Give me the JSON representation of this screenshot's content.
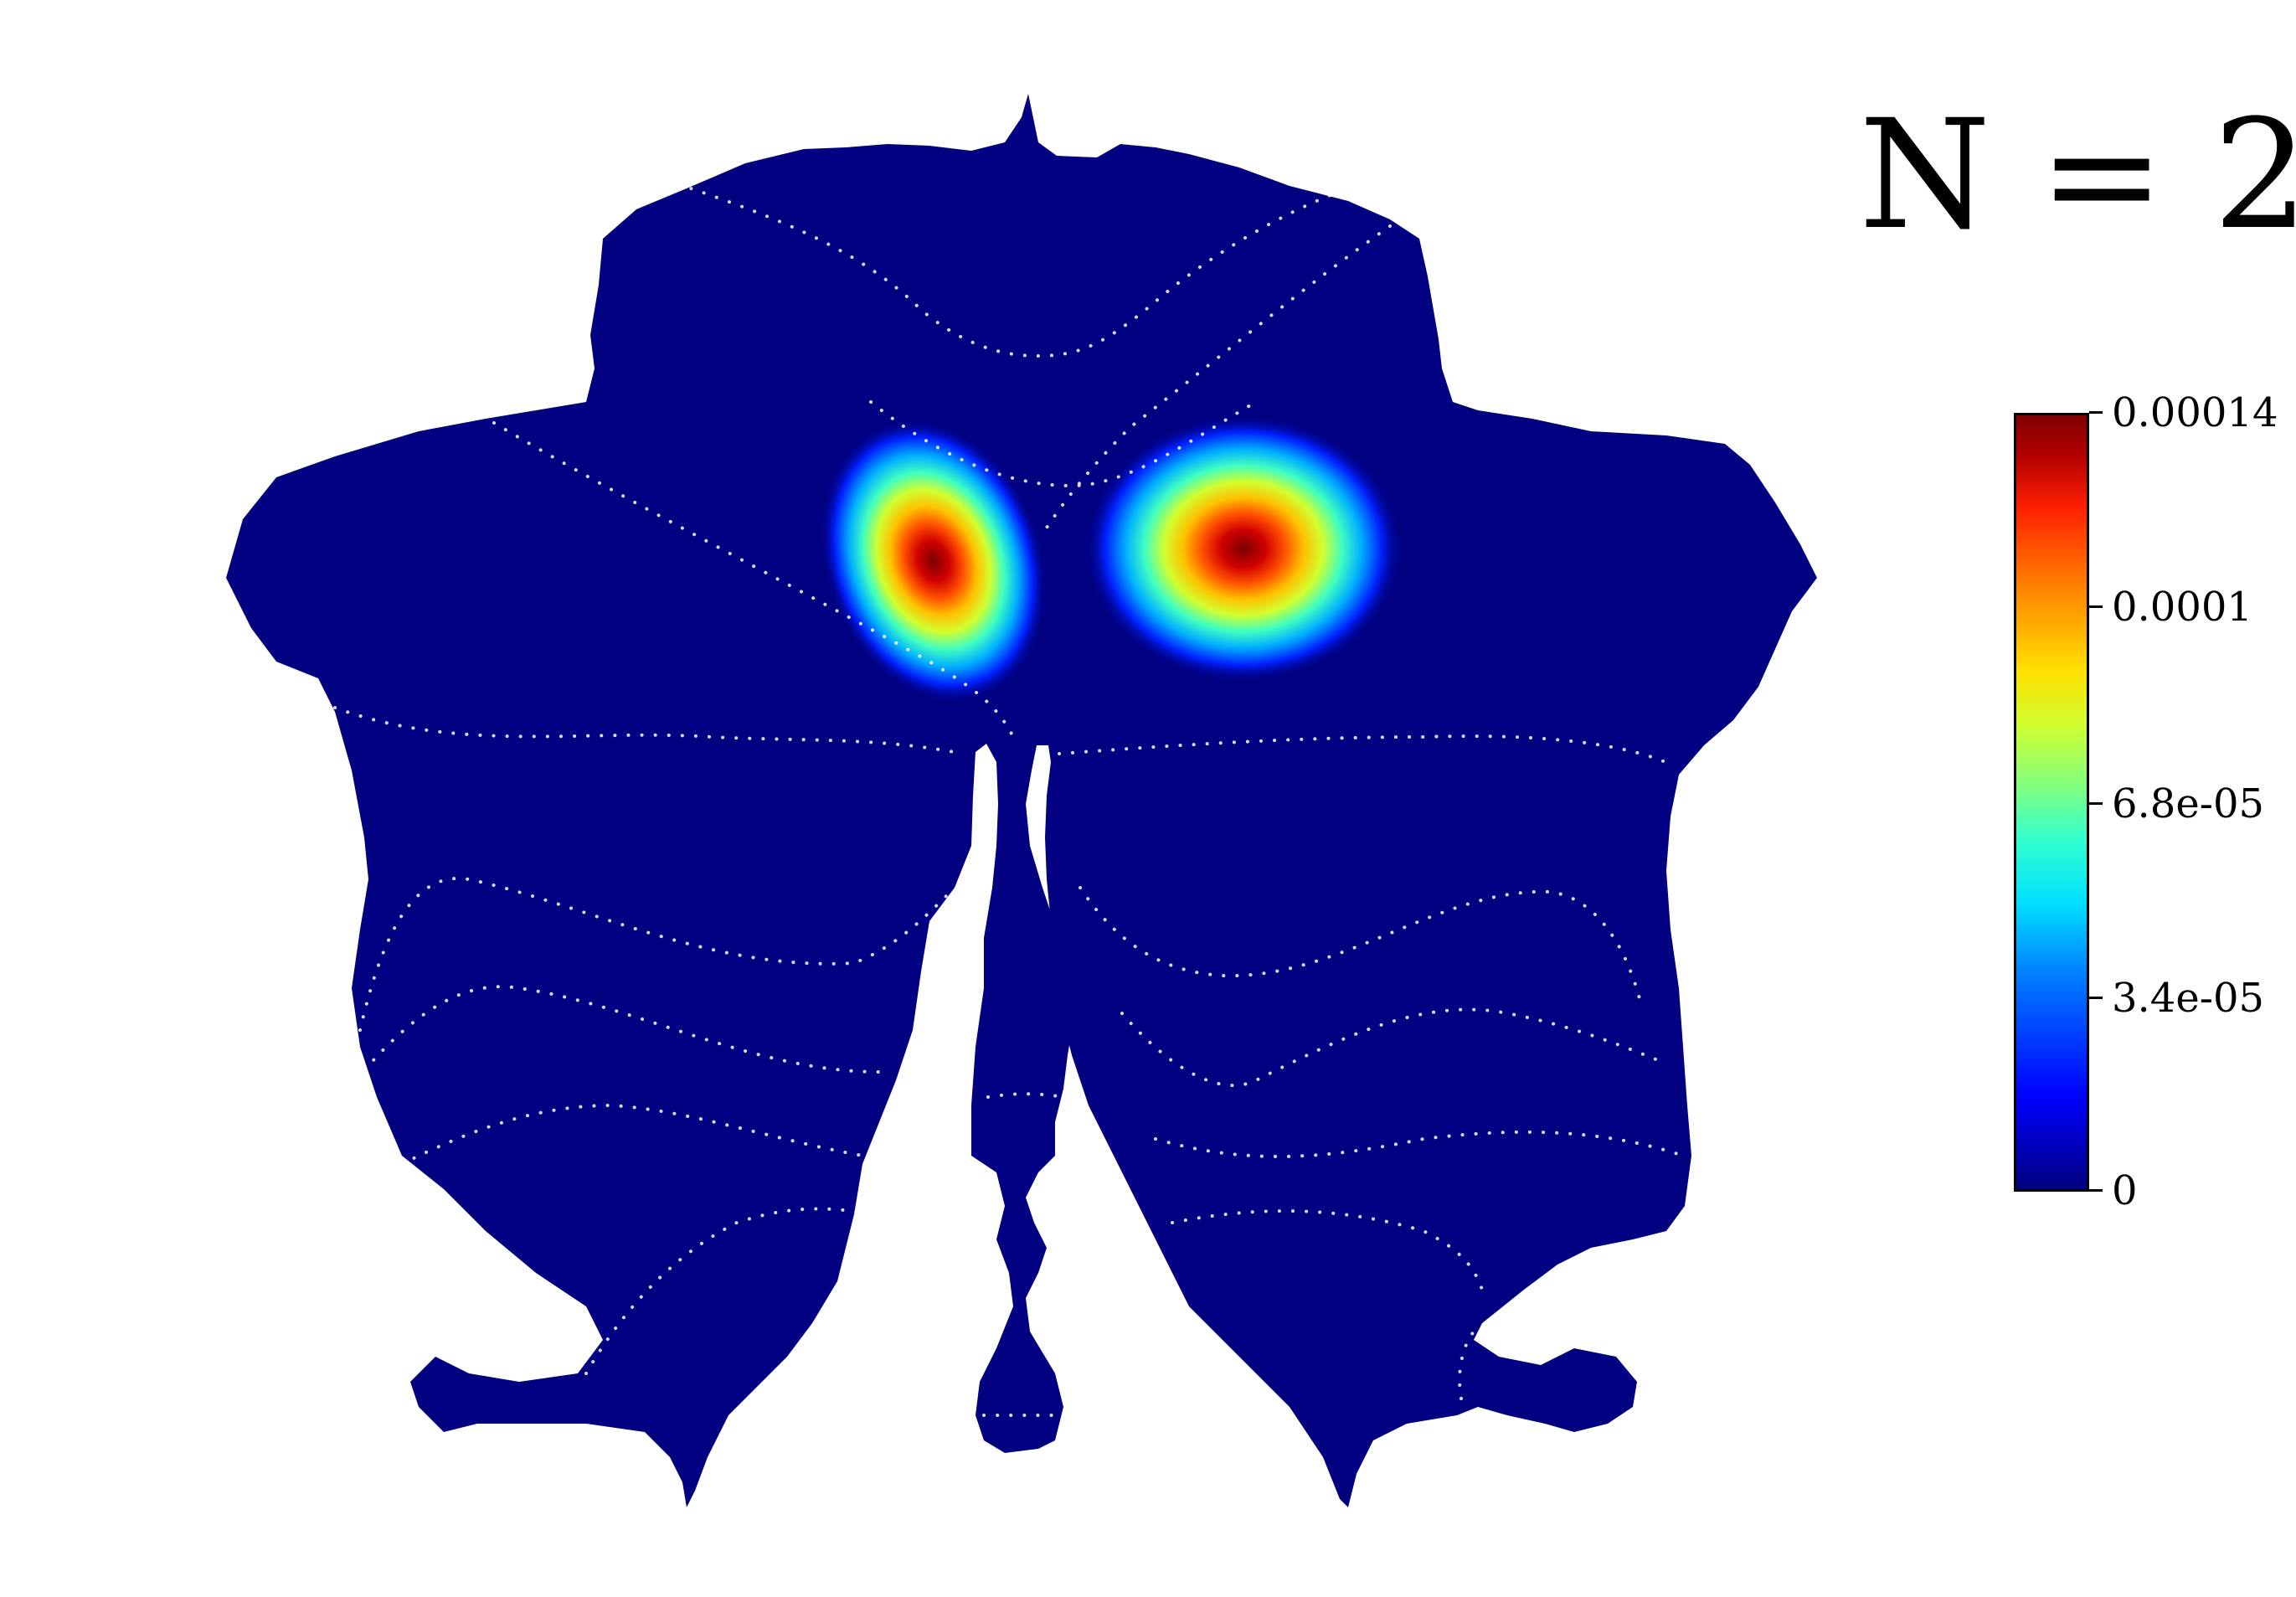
{
  "title": "N = 2",
  "colorbar": {
    "colormap": "jet",
    "min_color": "#000080",
    "max_color": "#800000",
    "ticks": [
      {
        "value": 0,
        "label": "0"
      },
      {
        "value": 3.4e-05,
        "label": "3.4e-05"
      },
      {
        "value": 6.8e-05,
        "label": "6.8e-05"
      },
      {
        "value": 0.0001,
        "label": "0.0001"
      },
      {
        "value": 0.00014,
        "label": "0.00014"
      }
    ],
    "range": [
      0,
      0.00014
    ]
  },
  "map": {
    "background_color": "#000080",
    "boundary_color": "#ffffff"
  }
}
